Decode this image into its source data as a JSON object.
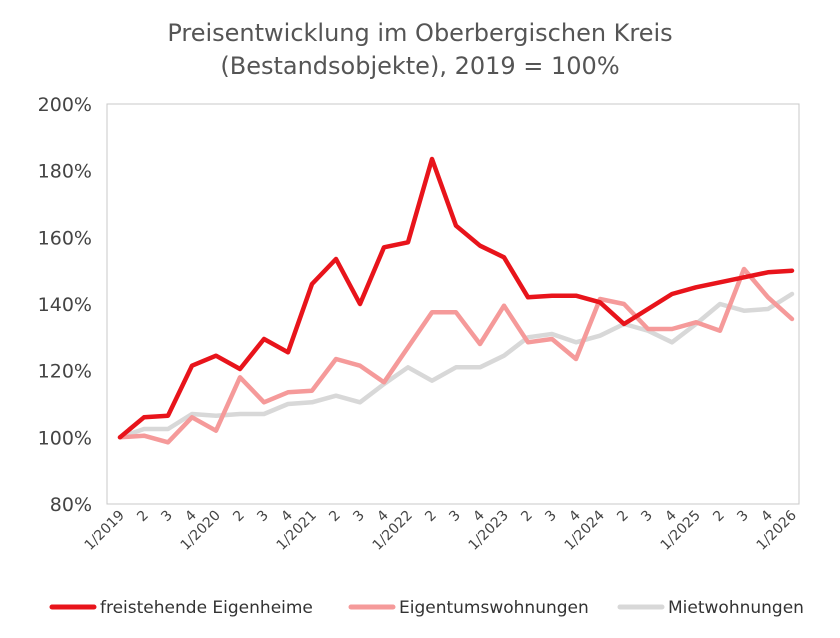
{
  "chart_data": {
    "type": "line",
    "title": [
      "Preisentwicklung im Oberbergischen Kreis",
      "(Bestandsobjekte), 2019 = 100%"
    ],
    "ylim": [
      80,
      200
    ],
    "yticks": [
      80,
      100,
      120,
      140,
      160,
      180,
      200
    ],
    "ytick_labels": [
      "80%",
      "100%",
      "120%",
      "140%",
      "160%",
      "180%",
      "200%"
    ],
    "categories": [
      "1/2019",
      "2",
      "3",
      "4",
      "1/2020",
      "2",
      "3",
      "4",
      "1/2021",
      "2",
      "3",
      "4",
      "1/2022",
      "2",
      "3",
      "4",
      "1/2023",
      "2",
      "3",
      "4",
      "1/2024",
      "2",
      "3",
      "4",
      "1/2025",
      "2",
      "3",
      "4",
      "1/2026"
    ],
    "grid": false,
    "legend_position": "bottom",
    "series": [
      {
        "name": "freistehende Eigenheime",
        "color": "#e8141b",
        "values": [
          100.0,
          106.0,
          106.5,
          121.5,
          124.5,
          120.5,
          129.5,
          125.5,
          146.0,
          153.5,
          140.0,
          157.0,
          158.5,
          183.5,
          163.5,
          157.5,
          154.0,
          142.0,
          142.5,
          142.5,
          140.5,
          134.0,
          138.5,
          143.0,
          145.0,
          146.5,
          148.0,
          149.5,
          150.0
        ]
      },
      {
        "name": "Eigentumswohnungen",
        "color": "#f59a9a",
        "values": [
          100.0,
          100.5,
          98.5,
          106.0,
          102.0,
          118.0,
          110.5,
          113.5,
          114.0,
          123.5,
          121.5,
          116.5,
          127.0,
          137.5,
          137.5,
          128.0,
          139.5,
          128.5,
          129.5,
          123.5,
          141.5,
          140.0,
          132.5,
          132.5,
          134.5,
          132.0,
          150.5,
          142.0,
          135.5
        ]
      },
      {
        "name": "Mietwohnungen",
        "color": "#d8d8d8",
        "values": [
          100.0,
          102.5,
          102.5,
          107.0,
          106.5,
          107.0,
          107.0,
          110.0,
          110.5,
          112.5,
          110.5,
          116.0,
          121.0,
          117.0,
          121.0,
          121.0,
          124.5,
          130.0,
          131.0,
          128.5,
          130.5,
          134.0,
          132.0,
          128.5,
          134.0,
          140.0,
          138.0,
          138.5,
          143.0
        ]
      }
    ]
  }
}
